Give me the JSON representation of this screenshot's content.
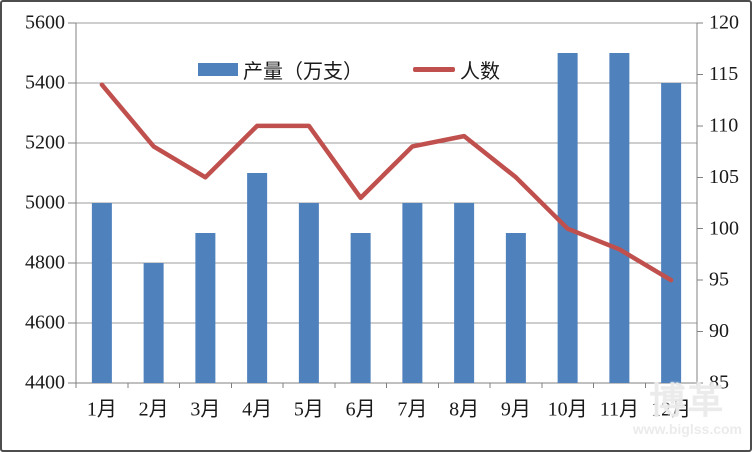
{
  "chart_data": {
    "type": "bar+line combo",
    "categories": [
      "1月",
      "2月",
      "3月",
      "4月",
      "5月",
      "6月",
      "7月",
      "8月",
      "9月",
      "10月",
      "11月",
      "12月"
    ],
    "series": [
      {
        "name": "产量（万支）",
        "type": "bar",
        "axis": "left",
        "color": "#4f81bd",
        "values": [
          5000,
          4800,
          4900,
          5100,
          5000,
          4900,
          5000,
          5000,
          4900,
          5500,
          5500,
          5400
        ]
      },
      {
        "name": "人数",
        "type": "line",
        "axis": "right",
        "color": "#c0504d",
        "values": [
          114,
          108,
          105,
          110,
          110,
          103,
          108,
          109,
          105,
          100,
          98,
          95
        ]
      }
    ],
    "left_axis": {
      "min": 4400,
      "max": 5600,
      "step": 200,
      "tick_labels": [
        "4400",
        "4600",
        "4800",
        "5000",
        "5200",
        "5400",
        "5600"
      ]
    },
    "right_axis": {
      "min": 85,
      "max": 120,
      "step": 5,
      "tick_labels": [
        "85",
        "90",
        "95",
        "100",
        "105",
        "110",
        "115",
        "120"
      ]
    },
    "title": "",
    "xlabel": "",
    "ylabel": "",
    "grid": true,
    "legend_position": "top-center"
  },
  "legend": {
    "bar_label": "产量（万支）",
    "line_label": "人数"
  },
  "watermark": {
    "logo": "博革",
    "url": "www.biglss.com"
  },
  "colors": {
    "bar": "#4f81bd",
    "line": "#c0504d",
    "gridline": "#9c9c9c",
    "axis": "#808080",
    "text": "#1a1a1a"
  }
}
